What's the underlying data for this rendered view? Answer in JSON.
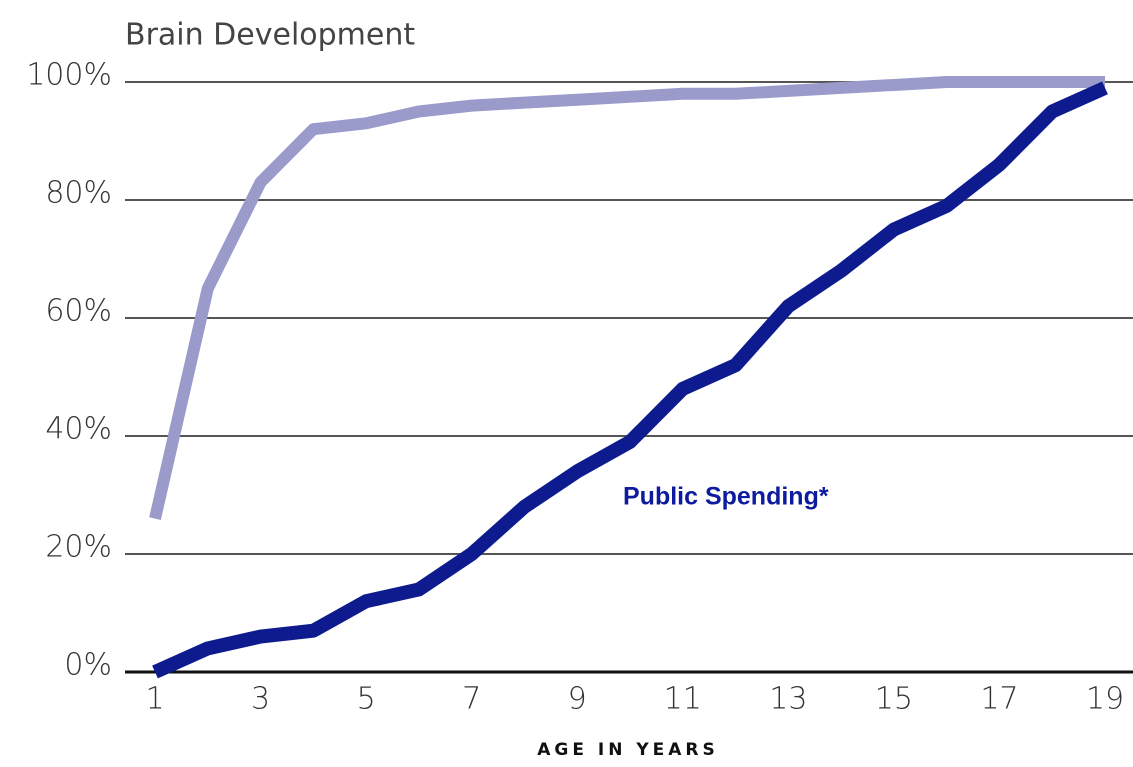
{
  "chart_data": {
    "type": "line",
    "x": [
      1,
      2,
      3,
      4,
      5,
      6,
      7,
      8,
      9,
      10,
      11,
      12,
      13,
      14,
      15,
      16,
      17,
      18,
      19
    ],
    "series": [
      {
        "name": "Brain Development",
        "color": "#9a9acb",
        "values": [
          26,
          65,
          83,
          92,
          93,
          95,
          96,
          96.5,
          97,
          97.5,
          98,
          98,
          98.5,
          99,
          99.5,
          100,
          100,
          100,
          100
        ]
      },
      {
        "name": "Public Spending*",
        "color": "#0d1b8e",
        "values": [
          0,
          4,
          6,
          7,
          12,
          14,
          20,
          28,
          34,
          39,
          48,
          52,
          62,
          68,
          75,
          79,
          86,
          95,
          99
        ]
      }
    ],
    "xlabel": "AGE IN YEARS",
    "xlim": [
      1,
      19
    ],
    "xticks": [
      1,
      3,
      5,
      7,
      9,
      11,
      13,
      15,
      17,
      19
    ],
    "ylim": [
      0,
      100
    ],
    "yticks": [
      {
        "value": 0,
        "label": "0%"
      },
      {
        "value": 20,
        "label": "20%"
      },
      {
        "value": 40,
        "label": "40%"
      },
      {
        "value": 60,
        "label": "60%"
      },
      {
        "value": 80,
        "label": "80%"
      },
      {
        "value": 100,
        "label": "100%"
      }
    ],
    "grid": true
  }
}
